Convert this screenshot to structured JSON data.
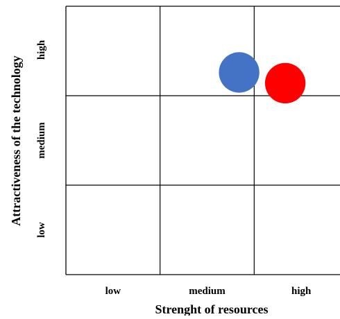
{
  "chart_data": {
    "type": "scatter",
    "title": "",
    "xlabel": "Strenght of resources",
    "ylabel": "Attractiveness of the technology",
    "x_categories": [
      "low",
      "medium",
      "high"
    ],
    "y_categories": [
      "low",
      "medium",
      "high"
    ],
    "xlim": [
      0,
      3
    ],
    "ylim": [
      0,
      3
    ],
    "grid": true,
    "legend": "none",
    "points": [
      {
        "x": 1.84,
        "y": 2.26,
        "size": 0.43,
        "color": "#4472C4"
      },
      {
        "x": 2.33,
        "y": 2.14,
        "size": 0.43,
        "color": "#FF0000"
      }
    ],
    "colors": {
      "grid": "#000000",
      "text": "#000000"
    }
  }
}
